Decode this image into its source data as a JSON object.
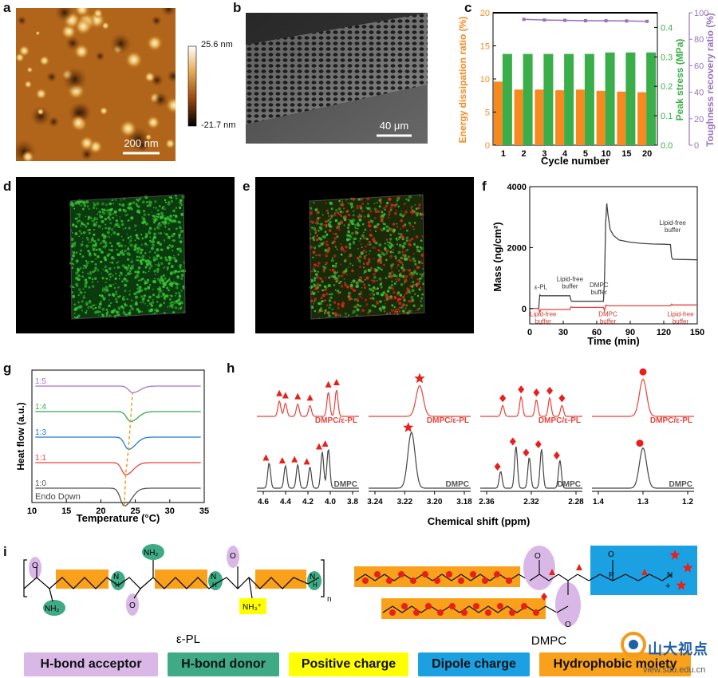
{
  "panel_letters": {
    "a": "a",
    "b": "b",
    "c": "c",
    "d": "d",
    "e": "e",
    "f": "f",
    "g": "g",
    "h": "h",
    "i": "i"
  },
  "panel_a": {
    "scale_bar": "200 nm",
    "colorbar_max": "25.6 nm",
    "colorbar_min": "-21.7 nm"
  },
  "panel_b": {
    "scale_bar": "40 μm"
  },
  "chart_data": [
    {
      "panel": "c",
      "type": "bar",
      "categories": [
        "1",
        "2",
        "3",
        "4",
        "5",
        "10",
        "15",
        "20"
      ],
      "xlabel": "Cycle number",
      "ylabel_left": "Energy dissipation ratio (%)",
      "ylabel_right1": "Peak stress (MPa)",
      "ylabel_right2": "Toughness recovery ratio (%)",
      "left_axis": {
        "ylim": [
          0,
          20
        ],
        "ticks": [
          "0",
          "5",
          "10",
          "15",
          "20"
        ]
      },
      "right_axis1": {
        "ylim": [
          0,
          0.45
        ],
        "ticks": [
          "0.0",
          "0.1",
          "0.2",
          "0.3",
          "0.4"
        ]
      },
      "right_axis2": {
        "ylim": [
          0,
          100
        ],
        "ticks": [
          "0",
          "20",
          "40",
          "60",
          "80",
          "100"
        ]
      },
      "series": [
        {
          "values": [
            9.6,
            8.4,
            8.4,
            8.3,
            8.4,
            8.2,
            8.1,
            8.0
          ],
          "color": "#f7891f",
          "axis": "left"
        },
        {
          "values": [
            0.31,
            0.31,
            0.31,
            0.31,
            0.31,
            0.315,
            0.315,
            0.315
          ],
          "color": "#3aae49",
          "axis": "right1"
        },
        {
          "values": [
            null,
            95,
            94.5,
            94.3,
            94,
            94,
            93.8,
            93.5
          ],
          "color": "#9a71b8",
          "axis": "right2"
        }
      ]
    },
    {
      "panel": "f",
      "type": "line",
      "xlabel": "Time (min)",
      "ylabel": "Mass (ng/cm²)",
      "xlim": [
        0,
        150
      ],
      "ylim": [
        -500,
        4000
      ],
      "xticks": [
        "0",
        "30",
        "60",
        "90",
        "120",
        "150"
      ],
      "yticks": [
        "0",
        "2000",
        "4000"
      ],
      "annotations": [
        "ε-PL",
        "Lipid-free buffer",
        "DMPC buffer",
        "Lipid-free buffer",
        "Lipid-free buffer",
        "DMPC buffer",
        "Lipid-free buffer"
      ],
      "series": [
        {
          "color": "#444444",
          "x": [
            0,
            8,
            9,
            10,
            36,
            37,
            38,
            66,
            67,
            68,
            69,
            70,
            72,
            75,
            80,
            90,
            100,
            110,
            120,
            126,
            127,
            128,
            150
          ],
          "y": [
            0,
            0,
            450,
            420,
            420,
            260,
            240,
            240,
            1000,
            2800,
            3450,
            3100,
            2600,
            2400,
            2250,
            2180,
            2140,
            2120,
            2110,
            2100,
            1700,
            1620,
            1600
          ]
        },
        {
          "color": "#e8423a",
          "x": [
            0,
            8,
            9,
            10,
            36,
            37,
            38,
            66,
            67,
            68,
            70,
            80,
            100,
            126,
            127,
            128,
            150
          ],
          "y": [
            0,
            0,
            -120,
            -30,
            -30,
            60,
            40,
            40,
            -70,
            110,
            90,
            90,
            90,
            90,
            150,
            120,
            120
          ]
        }
      ]
    },
    {
      "panel": "g",
      "type": "line",
      "xlabel": "Temperature (°C)",
      "ylabel": "Heat flow (a.u.)",
      "xlim": [
        10,
        35
      ],
      "xticks": [
        "10",
        "15",
        "20",
        "25",
        "30",
        "35"
      ],
      "annotation": "Endo Down",
      "series": [
        {
          "name": "1:0",
          "color": "#555555",
          "offset": 0,
          "min_x": 23.4,
          "depth": 1.6
        },
        {
          "name": "1:1",
          "color": "#e8423a",
          "offset": 1,
          "min_x": 23.6,
          "depth": 1.1
        },
        {
          "name": "1:3",
          "color": "#1f7ad1",
          "offset": 2,
          "min_x": 24.0,
          "depth": 1.1
        },
        {
          "name": "1:4",
          "color": "#34a853",
          "offset": 3,
          "min_x": 24.3,
          "depth": 0.9
        },
        {
          "name": "1:5",
          "color": "#a775c8",
          "offset": 4,
          "min_x": 24.6,
          "depth": 0.6
        }
      ]
    }
  ],
  "panel_h": {
    "xlabel": "Chemical shift (ppm)",
    "top_label": "DMPC/ε-PL",
    "bottom_label": "DMPC",
    "subplots": [
      {
        "ticks": [
          "4.6",
          "4.4",
          "4.2",
          "4.0",
          "3.8"
        ],
        "marker": "triangle"
      },
      {
        "ticks": [
          "3.24",
          "3.22",
          "3.20",
          "3.18"
        ],
        "marker": "star"
      },
      {
        "ticks": [
          "2.36",
          "2.32",
          "2.28"
        ],
        "marker": "diamond"
      },
      {
        "ticks": [
          "1.4",
          "1.3",
          "1.2"
        ],
        "marker": "circle"
      }
    ]
  },
  "panel_i": {
    "epl_title": "ε-PL",
    "dmpc_title": "DMPC",
    "labels": {
      "nh2": "NH₂",
      "nh3": "NH₃⁺",
      "nh": "H",
      "n": "N",
      "o": "O",
      "p": "P",
      "sub_n": "n",
      "plus": "+"
    },
    "legend": [
      {
        "label": "H-bond acceptor",
        "color": "#d9b8e8"
      },
      {
        "label": "H-bond donor",
        "color": "#3faa86"
      },
      {
        "label": "Positive charge",
        "color": "#ffff00"
      },
      {
        "label": "Dipole charge",
        "color": "#1ba1e2"
      },
      {
        "label": "Hydrophobic moiety",
        "color": "#f9a11b"
      }
    ]
  },
  "watermark": {
    "cn": "山大视点",
    "url": "view.sdu.edu.cn"
  }
}
